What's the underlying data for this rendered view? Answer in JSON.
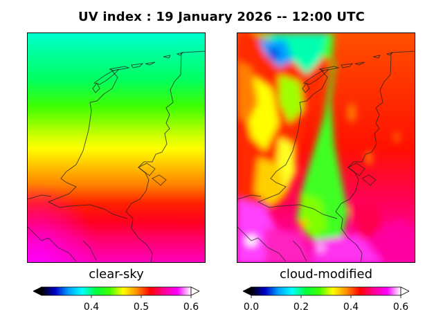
{
  "title": "UV index :  19 January 2026  --  12:00 UTC",
  "panels": {
    "left": {
      "label": "clear-sky",
      "colorbar": {
        "min": 0.3,
        "max": 0.6,
        "ticks": [
          "0.4",
          "0.5",
          "0.6"
        ],
        "tick_values": [
          0.4,
          0.5,
          0.6
        ]
      }
    },
    "right": {
      "label": "cloud-modified",
      "colorbar": {
        "min": 0.0,
        "max": 0.6,
        "ticks": [
          "0.0",
          "0.2",
          "0.4",
          "0.6"
        ],
        "tick_values": [
          0.0,
          0.2,
          0.4,
          0.6
        ]
      }
    }
  },
  "colormap": [
    "#000000",
    "#0000c8",
    "#00a0ff",
    "#00ffff",
    "#00ff40",
    "#40ff00",
    "#ffff00",
    "#ff9000",
    "#ff0000",
    "#ff0090",
    "#ff00ff",
    "#ffffff"
  ]
}
